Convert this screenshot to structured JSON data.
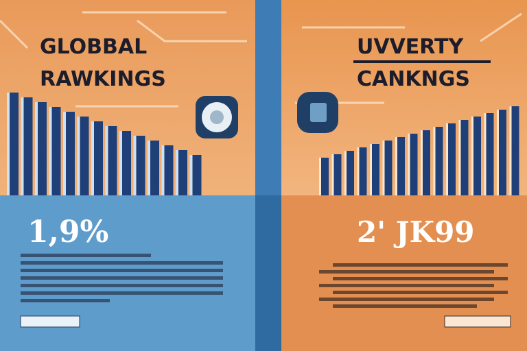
{
  "left": {
    "title_line1": "GLOBBAL",
    "title_line2": "RAWKINGS",
    "stat": "1,9%"
  },
  "right": {
    "title_line1": "UVVERTY",
    "title_line2": "CANKNGS",
    "stat": "2' JK99"
  }
}
